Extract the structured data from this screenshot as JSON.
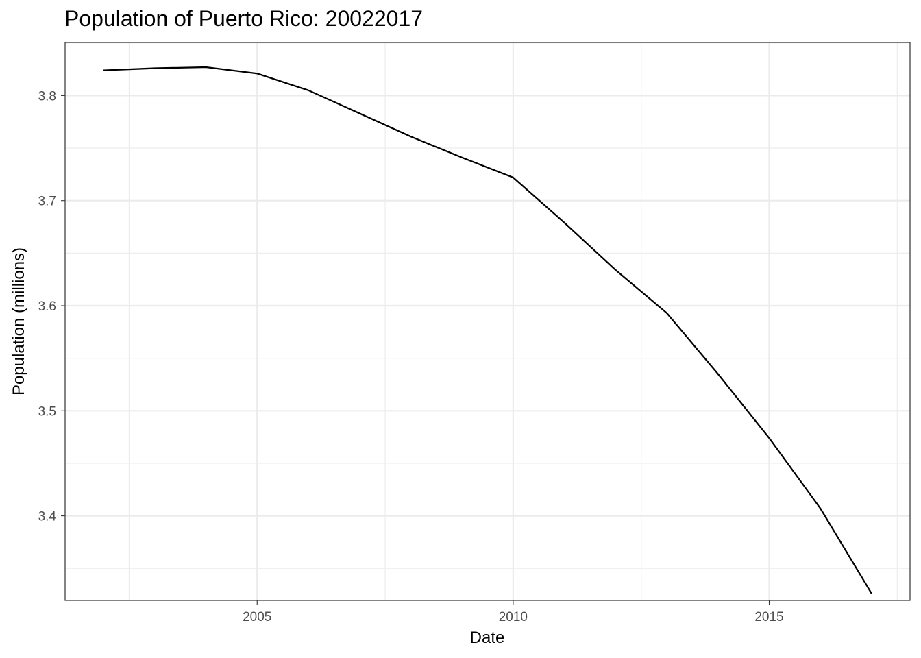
{
  "chart_data": {
    "type": "line",
    "title": "Population of Puerto Rico: 20022017",
    "xlabel": "Date",
    "ylabel": "Population (millions)",
    "x": [
      2002,
      2003,
      2004,
      2005,
      2006,
      2007,
      2008,
      2009,
      2010,
      2011,
      2012,
      2013,
      2014,
      2015,
      2016,
      2017
    ],
    "series": [
      {
        "values": [
          3.824,
          3.826,
          3.827,
          3.821,
          3.805,
          3.783,
          3.761,
          3.741,
          3.722,
          3.679,
          3.634,
          3.593,
          3.535,
          3.474,
          3.407,
          3.326
        ]
      }
    ],
    "x_ticks": [
      2005,
      2010,
      2015
    ],
    "x_tick_labels": [
      "2005",
      "2010",
      "2015"
    ],
    "y_ticks": [
      3.4,
      3.5,
      3.6,
      3.7,
      3.8
    ],
    "y_tick_labels": [
      "3.4",
      "3.5",
      "3.6",
      "3.7",
      "3.8"
    ],
    "xlim": [
      2001.25,
      2017.75
    ],
    "ylim": [
      3.3195,
      3.8505
    ],
    "grid": true,
    "legend": "none",
    "colors": {
      "line": "#000000",
      "grid": "#ebebeb",
      "panel_border": "#333333",
      "tick_text": "#4d4d4d"
    }
  }
}
